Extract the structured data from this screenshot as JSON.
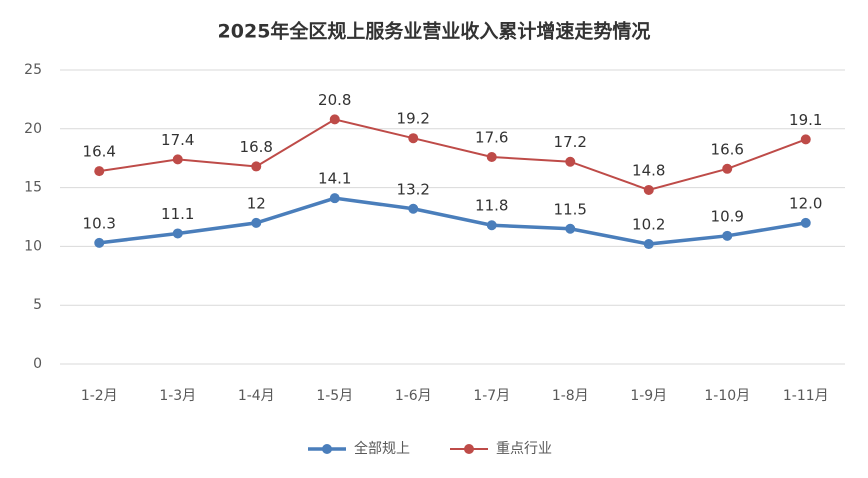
{
  "chart_data": {
    "type": "line",
    "title": "2025年全区规上服务业营业收入累计增速走势情况",
    "categories": [
      "1-2月",
      "1-3月",
      "1-4月",
      "1-5月",
      "1-6月",
      "1-7月",
      "1-8月",
      "1-9月",
      "1-10月",
      "1-11月"
    ],
    "series": [
      {
        "name": "全部规上",
        "color": "#4a7ebb",
        "values": [
          10.3,
          11.1,
          12,
          14.1,
          13.2,
          11.8,
          11.5,
          10.2,
          10.9,
          12.0
        ],
        "value_labels": [
          "10.3",
          "11.1",
          "12",
          "14.1",
          "13.2",
          "11.8",
          "11.5",
          "10.2",
          "10.9",
          "12.0"
        ]
      },
      {
        "name": "重点行业",
        "color": "#be4b48",
        "values": [
          16.4,
          17.4,
          16.8,
          20.8,
          19.2,
          17.6,
          17.2,
          14.8,
          16.6,
          19.1
        ]
      }
    ],
    "ylim": [
      0,
      25
    ],
    "yticks": [
      0,
      5,
      10,
      15,
      20,
      25
    ],
    "grid": true,
    "legend": "bottom"
  }
}
